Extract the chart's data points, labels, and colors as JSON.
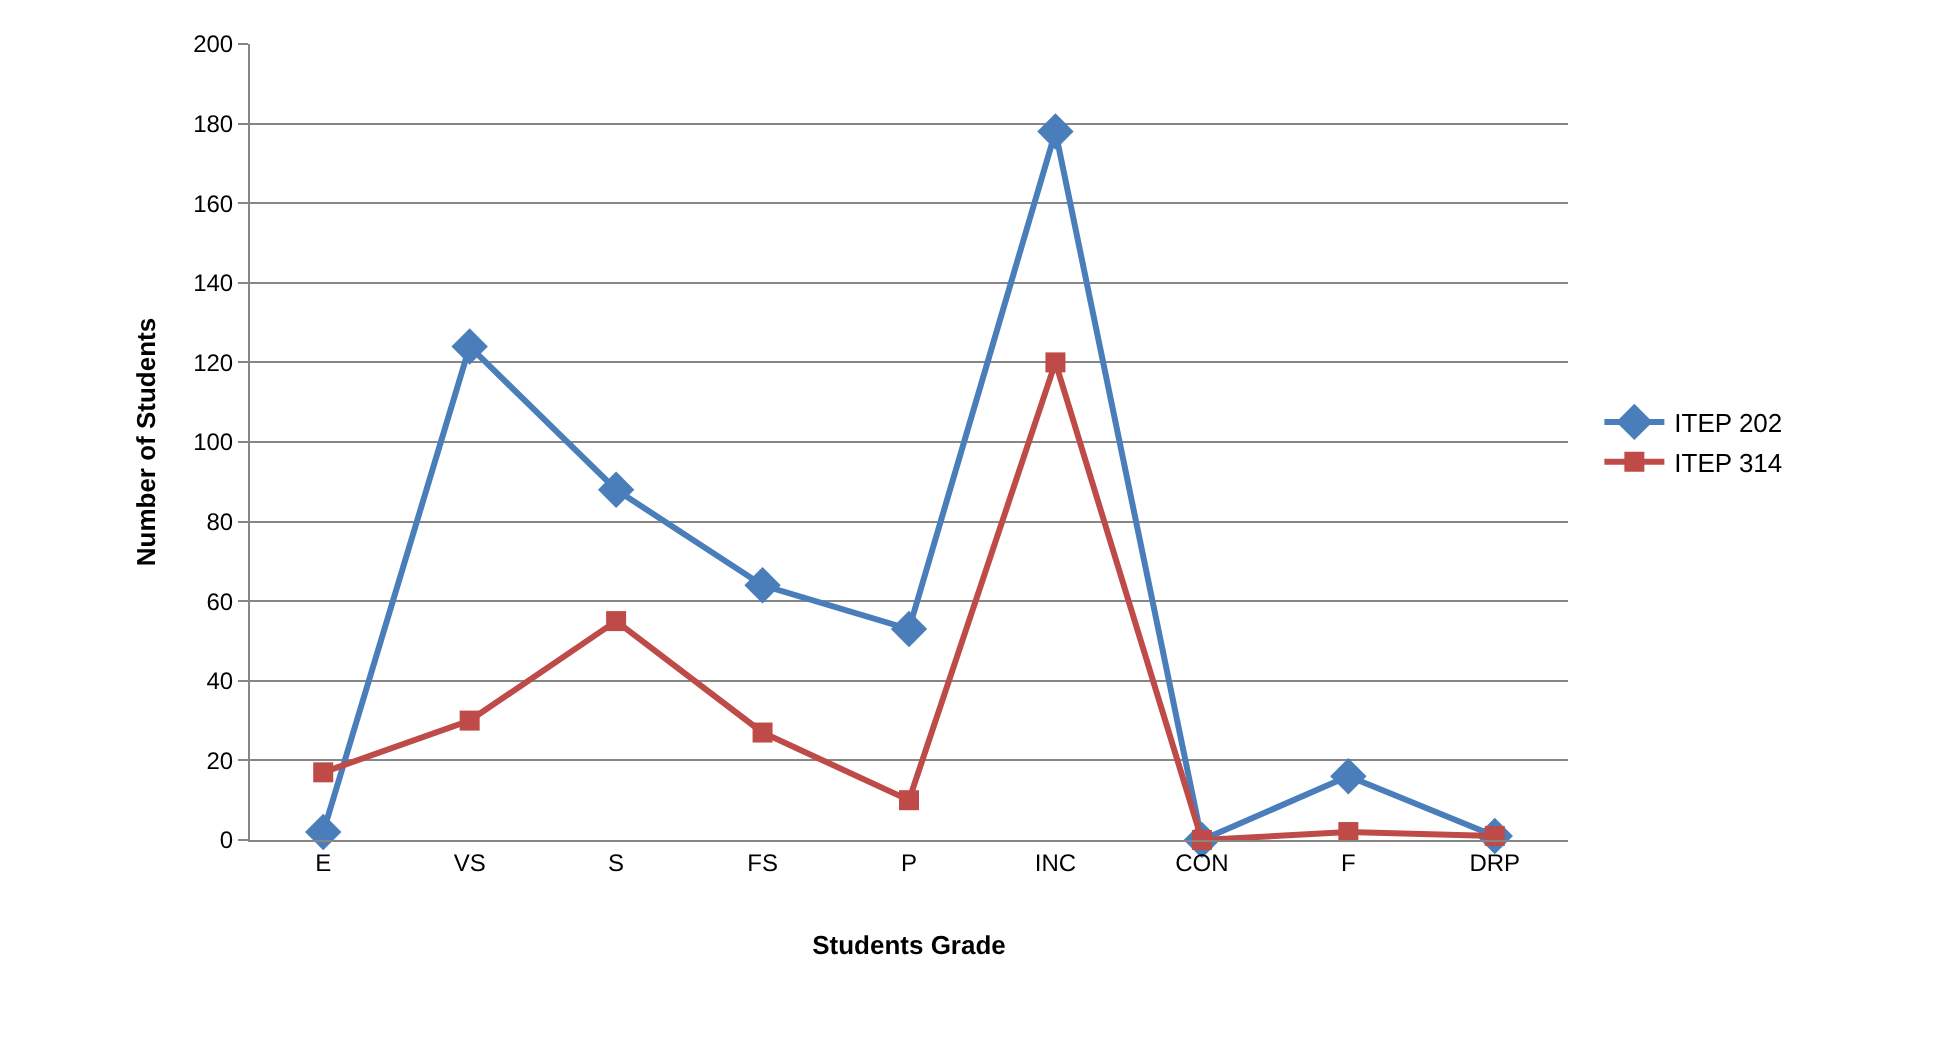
{
  "chart_data": {
    "type": "line",
    "xlabel": "Students Grade",
    "ylabel": "Number of Students",
    "categories": [
      "E",
      "VS",
      "S",
      "FS",
      "P",
      "INC",
      "CON",
      "F",
      "DRP"
    ],
    "series": [
      {
        "name": "ITEP 202",
        "color": "#4a7ebb",
        "marker": "diamond",
        "values": [
          2,
          124,
          88,
          64,
          53,
          178,
          0,
          16,
          1
        ]
      },
      {
        "name": "ITEP 314",
        "color": "#be4b48",
        "marker": "square",
        "values": [
          17,
          30,
          55,
          27,
          10,
          120,
          0,
          2,
          1
        ]
      }
    ],
    "ylim": [
      0,
      200
    ],
    "yticks": [
      0,
      20,
      40,
      60,
      80,
      100,
      120,
      140,
      160,
      180,
      200
    ],
    "grid": "y",
    "legend": "right",
    "line_style": "solid"
  }
}
